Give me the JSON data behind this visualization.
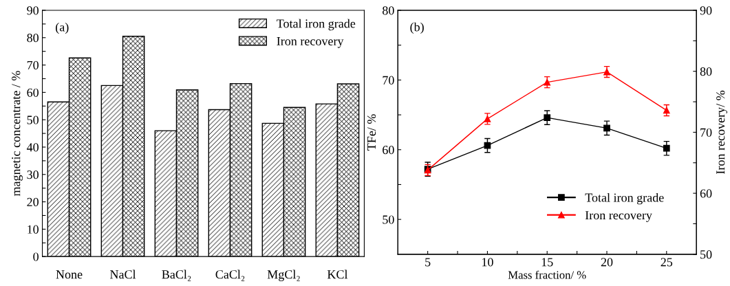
{
  "chart_data": [
    {
      "type": "bar",
      "ylabel": "magnetic concentrate / %",
      "categories": [
        "None",
        "NaCl",
        "BaCl₂",
        "CaCl₂",
        "MgCl₂",
        "KCl"
      ],
      "series": [
        {
          "name": "Total iron grade",
          "color": "#000000",
          "values": [
            56.5,
            62.5,
            46.0,
            53.7,
            48.7,
            55.8
          ]
        },
        {
          "name": "Iron recovery",
          "color": "#000000",
          "values": [
            72.6,
            80.5,
            60.9,
            63.2,
            54.5,
            63.1
          ]
        }
      ],
      "ylim": [
        0,
        90
      ],
      "yticks": [
        0,
        {
          "value": 5,
          "label": null
        },
        10,
        {
          "value": 15,
          "label": null
        },
        20,
        {
          "value": 25,
          "label": null
        },
        30,
        {
          "value": 35,
          "label": null
        },
        40,
        {
          "value": 45,
          "label": null
        },
        50,
        {
          "value": 55,
          "label": null
        },
        60,
        {
          "value": 65,
          "label": null
        },
        70,
        {
          "value": 75,
          "label": null
        },
        80,
        {
          "value": 85,
          "label": null
        },
        90
      ],
      "annotations": [
        "(a)"
      ],
      "legend": "top right",
      "grid": false
    },
    {
      "type": "line",
      "xlabel": "Mass fraction/ %",
      "ylabel": "TFe/ %",
      "y2label": "Iron recovery/ %",
      "x": [
        5,
        10,
        15,
        20,
        25
      ],
      "series": [
        {
          "name": "Total iron grade",
          "color": "#000000",
          "marker": "square",
          "values": [
            57.2,
            60.6,
            64.6,
            63.1,
            60.2
          ],
          "errors": [
            1.0,
            1.0,
            1.0,
            1.0,
            1.0
          ]
        },
        {
          "name": "Iron recovery",
          "color": "#ff0000",
          "marker": "triangle",
          "axis": "y2",
          "values": [
            63.8,
            72.2,
            78.2,
            79.9,
            73.6
          ],
          "errors": [
            0.9,
            0.9,
            0.9,
            0.9,
            0.9
          ]
        }
      ],
      "xlim": [
        2.5,
        27.5
      ],
      "xticks": [
        5,
        {
          "value": 7.5,
          "label": null
        },
        10,
        {
          "value": 12.5,
          "label": null
        },
        15,
        {
          "value": 17.5,
          "label": null
        },
        20,
        {
          "value": 22.5,
          "label": null
        },
        25
      ],
      "ylim": [
        45,
        80
      ],
      "yticks": [
        50,
        {
          "value": 55,
          "label": null
        },
        60,
        {
          "value": 65,
          "label": null
        },
        70,
        {
          "value": 75,
          "label": null
        },
        80
      ],
      "y2lim": [
        50,
        90
      ],
      "y2ticks": [
        50,
        {
          "value": 55,
          "label": null
        },
        60,
        {
          "value": 65,
          "label": null
        },
        70,
        {
          "value": 75,
          "label": null
        },
        80,
        {
          "value": 85,
          "label": null
        },
        90
      ],
      "annotations": [
        "(b)"
      ],
      "legend": "bottom right",
      "grid": false,
      "line_style": "solid"
    }
  ]
}
